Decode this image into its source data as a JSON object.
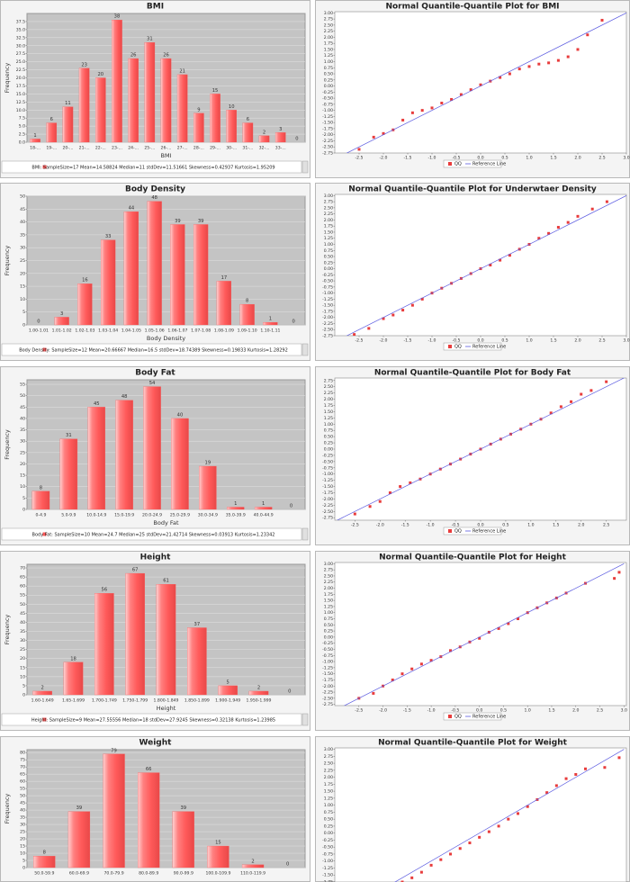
{
  "chart_data": [
    {
      "type": "bar",
      "title": "BMI",
      "x_label": "BMI",
      "y_label": "Frequency",
      "categories": [
        "18-...",
        "19-...",
        "20-...",
        "21-...",
        "22-...",
        "23-...",
        "24-...",
        "25-...",
        "26-...",
        "27-...",
        "28-...",
        "29-...",
        "30-...",
        "31-...",
        "32-...",
        "33-...",
        null
      ],
      "values": [
        1,
        6,
        11,
        23,
        20,
        38,
        26,
        31,
        26,
        21,
        9,
        15,
        10,
        6,
        2,
        3,
        0
      ],
      "color": "#ff5a5a",
      "ylim": [
        0,
        40
      ],
      "yticks": [
        {
          "value": 0,
          "label": "0.0"
        },
        2.5,
        {
          "value": 5,
          "label": "5.0"
        },
        7.5,
        {
          "value": 10,
          "label": "10.0"
        },
        12.5,
        {
          "value": 15,
          "label": "15.0"
        },
        17.5,
        {
          "value": 20,
          "label": "20.0"
        },
        22.5,
        {
          "value": 25,
          "label": "25.0"
        },
        27.5,
        {
          "value": 30,
          "label": "30.0"
        },
        32.5,
        {
          "value": 35,
          "label": "35.0"
        },
        37.5
      ],
      "grid": true,
      "summary": "BMI: SampleSize=17 Mean=14.58824 Median=11 stdDev=11.51661 Skewness=0.42937 Kurtosis=1.95209"
    },
    {
      "type": "scatter",
      "title": "Normal Quantile-Quantile Plot for BMI",
      "series": [
        {
          "name": "QQ",
          "color": "#e83c3c",
          "x": [
            -2.5,
            -2.2,
            -2.0,
            -1.8,
            -1.6,
            -1.4,
            -1.2,
            -1.0,
            -0.8,
            -0.6,
            -0.4,
            -0.2,
            0.0,
            0.2,
            0.4,
            0.6,
            0.8,
            1.0,
            1.2,
            1.4,
            1.6,
            1.8,
            2.0,
            2.2,
            2.5
          ],
          "y": [
            -2.6,
            -2.1,
            -1.95,
            -1.8,
            -1.4,
            -1.1,
            -1.0,
            -0.9,
            -0.7,
            -0.55,
            -0.35,
            -0.15,
            0.05,
            0.2,
            0.35,
            0.5,
            0.7,
            0.8,
            0.9,
            0.95,
            1.05,
            1.2,
            1.5,
            2.1,
            2.7
          ]
        },
        {
          "name": "Reference Line",
          "color": "#5a5ae0",
          "x": [
            -3,
            3
          ],
          "y": [
            -3,
            3
          ],
          "mode": "line"
        }
      ],
      "xlim": [
        -3,
        3
      ],
      "ylim": [
        -2.75,
        3.05
      ],
      "xticks": [
        -2.5,
        {
          "value": -2,
          "label": "-2.0"
        },
        -1.5,
        {
          "value": -1,
          "label": "-1.0"
        },
        -0.5,
        {
          "value": 0,
          "label": "0.0"
        },
        0.5,
        {
          "value": 1,
          "label": "1.0"
        },
        1.5,
        {
          "value": 2,
          "label": "2.0"
        },
        2.5,
        {
          "value": 3,
          "label": "3.0"
        }
      ],
      "yticks": [
        -2.75,
        {
          "value": -2.5,
          "label": "-2.50"
        },
        -2.25,
        {
          "value": -2,
          "label": "-2.00"
        },
        -1.75,
        {
          "value": -1.5,
          "label": "-1.50"
        },
        -1.25,
        {
          "value": -1,
          "label": "-1.00"
        },
        -0.75,
        {
          "value": -0.5,
          "label": "-0.50"
        },
        -0.25,
        {
          "value": 0,
          "label": "0.00"
        },
        0.25,
        {
          "value": 0.5,
          "label": "0.50"
        },
        0.75,
        {
          "value": 1,
          "label": "1.00"
        },
        1.25,
        {
          "value": 1.5,
          "label": "1.50"
        },
        1.75,
        {
          "value": 2,
          "label": "2.00"
        },
        2.25,
        {
          "value": 2.5,
          "label": "2.50"
        },
        2.75,
        {
          "value": 3,
          "label": "3.00"
        }
      ]
    },
    {
      "type": "bar",
      "title": "Body Density",
      "x_label": "Body Density",
      "y_label": "Frequency",
      "categories": [
        "1.00-1.01",
        "1.01-1.02",
        "1.02-1.03",
        "1.03-1.04",
        "1.04-1.05",
        "1.05-1.06",
        "1.06-1.07",
        "1.07-1.08",
        "1.08-1.09",
        "1.09-1.10",
        "1.10-1.11",
        null
      ],
      "values": [
        0,
        3,
        16,
        33,
        44,
        48,
        39,
        39,
        17,
        8,
        1,
        0
      ],
      "color": "#ff5a5a",
      "ylim": [
        0,
        50
      ],
      "yticks": [
        0,
        5,
        10,
        15,
        20,
        25,
        30,
        35,
        40,
        45,
        50
      ],
      "grid": true,
      "summary": "Body Density: SampleSize=12 Mean=20.66667 Median=16.5 stdDev=18.74389 Skewness=0.19833 Kurtosis=1.28292"
    },
    {
      "type": "scatter",
      "title": "Normal Quantile-Quantile Plot for Underwtaer Density",
      "series": [
        {
          "name": "QQ",
          "color": "#e83c3c",
          "x": [
            -2.6,
            -2.3,
            -2.0,
            -1.8,
            -1.6,
            -1.4,
            -1.2,
            -1.0,
            -0.8,
            -0.6,
            -0.4,
            -0.2,
            0.0,
            0.2,
            0.4,
            0.6,
            0.8,
            1.0,
            1.2,
            1.4,
            1.6,
            1.8,
            2.0,
            2.3,
            2.6
          ],
          "y": [
            -2.7,
            -2.45,
            -2.05,
            -1.9,
            -1.7,
            -1.5,
            -1.25,
            -1.0,
            -0.8,
            -0.6,
            -0.4,
            -0.2,
            0.0,
            0.15,
            0.35,
            0.55,
            0.8,
            1.0,
            1.25,
            1.45,
            1.7,
            1.9,
            2.15,
            2.45,
            2.75
          ]
        },
        {
          "name": "Reference Line",
          "color": "#5a5ae0",
          "x": [
            -3,
            3
          ],
          "y": [
            -3,
            3
          ],
          "mode": "line"
        }
      ],
      "xlim": [
        -3,
        3
      ],
      "ylim": [
        -2.75,
        3.05
      ],
      "xticks": [
        -2.5,
        {
          "value": -2,
          "label": "-2.0"
        },
        -1.5,
        {
          "value": -1,
          "label": "-1.0"
        },
        -0.5,
        {
          "value": 0,
          "label": "0.0"
        },
        0.5,
        {
          "value": 1,
          "label": "1.0"
        },
        1.5,
        {
          "value": 2,
          "label": "2.0"
        },
        2.5,
        {
          "value": 3,
          "label": "3.0"
        }
      ],
      "yticks": [
        -2.75,
        {
          "value": -2.5,
          "label": "-2.50"
        },
        -2.25,
        {
          "value": -2,
          "label": "-2.00"
        },
        -1.75,
        {
          "value": -1.5,
          "label": "-1.50"
        },
        -1.25,
        {
          "value": -1,
          "label": "-1.00"
        },
        -0.75,
        {
          "value": -0.5,
          "label": "-0.50"
        },
        -0.25,
        {
          "value": 0,
          "label": "0.00"
        },
        0.25,
        {
          "value": 0.5,
          "label": "0.50"
        },
        0.75,
        {
          "value": 1,
          "label": "1.00"
        },
        1.25,
        {
          "value": 1.5,
          "label": "1.50"
        },
        1.75,
        {
          "value": 2,
          "label": "2.00"
        },
        2.25,
        {
          "value": 2.5,
          "label": "2.50"
        },
        2.75,
        {
          "value": 3,
          "label": "3.00"
        }
      ]
    },
    {
      "type": "bar",
      "title": "Body Fat",
      "x_label": "Body Fat",
      "y_label": "Frequency",
      "categories": [
        "0-4.9",
        "5.0-9.9",
        "10.0-14.9",
        "15.0-19.9",
        "20.0-24.9",
        "25.0-29.9",
        "30.0-34.9",
        "35.0-39.9",
        "40.0-44.9",
        null
      ],
      "values": [
        8,
        31,
        45,
        48,
        54,
        40,
        19,
        1,
        1,
        0
      ],
      "color": "#ff5a5a",
      "ylim": [
        0,
        57
      ],
      "yticks": [
        0,
        5,
        10,
        15,
        20,
        25,
        30,
        35,
        40,
        45,
        50,
        55
      ],
      "grid": true,
      "summary": "Body Fat: SampleSize=10 Mean=24.7 Median=25 stdDev=21.42714 Skewness=0.03913 Kurtosis=1.23342"
    },
    {
      "type": "scatter",
      "title": "Normal Quantile-Quantile Plot for Body Fat",
      "series": [
        {
          "name": "QQ",
          "color": "#e83c3c",
          "x": [
            -2.5,
            -2.2,
            -2.0,
            -1.8,
            -1.6,
            -1.4,
            -1.2,
            -1.0,
            -0.8,
            -0.6,
            -0.4,
            -0.2,
            0.0,
            0.2,
            0.4,
            0.6,
            0.8,
            1.0,
            1.2,
            1.4,
            1.6,
            1.8,
            2.0,
            2.2,
            2.5
          ],
          "y": [
            -2.6,
            -2.3,
            -2.1,
            -1.75,
            -1.5,
            -1.35,
            -1.2,
            -1.0,
            -0.8,
            -0.6,
            -0.4,
            -0.2,
            0.0,
            0.2,
            0.4,
            0.6,
            0.8,
            1.0,
            1.2,
            1.45,
            1.7,
            1.9,
            2.2,
            2.35,
            2.7
          ]
        },
        {
          "name": "Reference Line",
          "color": "#5a5ae0",
          "x": [
            -2.9,
            2.9
          ],
          "y": [
            -2.9,
            2.9
          ],
          "mode": "line"
        }
      ],
      "xlim": [
        -2.9,
        2.9
      ],
      "ylim": [
        -2.85,
        2.85
      ],
      "xticks": [
        -2.5,
        {
          "value": -2,
          "label": "-2.0"
        },
        -1.5,
        {
          "value": -1,
          "label": "-1.0"
        },
        -0.5,
        {
          "value": 0,
          "label": "0.0"
        },
        0.5,
        {
          "value": 1,
          "label": "1.0"
        },
        1.5,
        {
          "value": 2,
          "label": "2.0"
        },
        2.5
      ],
      "yticks": [
        -2.75,
        {
          "value": -2.5,
          "label": "-2.50"
        },
        -2.25,
        {
          "value": -2,
          "label": "-2.00"
        },
        -1.75,
        {
          "value": -1.5,
          "label": "-1.50"
        },
        -1.25,
        {
          "value": -1,
          "label": "-1.00"
        },
        -0.75,
        {
          "value": -0.5,
          "label": "-0.50"
        },
        -0.25,
        {
          "value": 0,
          "label": "0.00"
        },
        0.25,
        {
          "value": 0.5,
          "label": "0.50"
        },
        0.75,
        {
          "value": 1,
          "label": "1.00"
        },
        1.25,
        {
          "value": 1.5,
          "label": "1.50"
        },
        1.75,
        {
          "value": 2,
          "label": "2.00"
        },
        2.25,
        {
          "value": 2.5,
          "label": "2.50"
        },
        2.75
      ]
    },
    {
      "type": "bar",
      "title": "Height",
      "x_label": "Height",
      "y_label": "Frequency",
      "categories": [
        "1.60-1.649",
        "1.65-1.699",
        "1.700-1.749",
        "1.750-1.799",
        "1.800-1.849",
        "1.850-1.899",
        "1.900-1.949",
        "1.950-1.999",
        null
      ],
      "values": [
        2,
        18,
        56,
        67,
        61,
        37,
        5,
        2,
        0
      ],
      "color": "#ff5a5a",
      "ylim": [
        0,
        72
      ],
      "yticks": [
        0,
        5,
        10,
        15,
        20,
        25,
        30,
        35,
        40,
        45,
        50,
        55,
        60,
        65,
        70
      ],
      "grid": true,
      "summary": "Height: SampleSize=9 Mean=27.55556 Median=18 stdDev=27.9245 Skewness=0.32138 Kurtosis=1.23985"
    },
    {
      "type": "scatter",
      "title": "Normal Quantile-Quantile Plot for Height",
      "series": [
        {
          "name": "QQ",
          "color": "#e83c3c",
          "x": [
            -2.5,
            -2.2,
            -2.0,
            -1.8,
            -1.6,
            -1.4,
            -1.2,
            -1.0,
            -0.8,
            -0.6,
            -0.4,
            -0.2,
            0.0,
            0.2,
            0.4,
            0.6,
            0.8,
            1.0,
            1.2,
            1.4,
            1.6,
            1.8,
            2.2,
            2.8,
            2.9
          ],
          "y": [
            -2.5,
            -2.3,
            -2.0,
            -1.75,
            -1.5,
            -1.3,
            -1.1,
            -0.95,
            -0.8,
            -0.55,
            -0.4,
            -0.2,
            -0.05,
            0.2,
            0.35,
            0.55,
            0.75,
            1.0,
            1.2,
            1.4,
            1.6,
            1.8,
            2.2,
            2.4,
            2.65
          ]
        },
        {
          "name": "Reference Line",
          "color": "#5a5ae0",
          "x": [
            -3,
            3
          ],
          "y": [
            -3,
            3
          ],
          "mode": "line"
        }
      ],
      "xlim": [
        -3,
        3.05
      ],
      "ylim": [
        -2.8,
        3.05
      ],
      "xticks": [
        -2.5,
        {
          "value": -2,
          "label": "-2.0"
        },
        -1.5,
        {
          "value": -1,
          "label": "-1.0"
        },
        -0.5,
        {
          "value": 0,
          "label": "0.0"
        },
        0.5,
        {
          "value": 1,
          "label": "1.0"
        },
        1.5,
        {
          "value": 2,
          "label": "2.0"
        },
        2.5,
        {
          "value": 3,
          "label": "3.0"
        }
      ],
      "yticks": [
        -2.75,
        {
          "value": -2.5,
          "label": "-2.50"
        },
        -2.25,
        {
          "value": -2,
          "label": "-2.00"
        },
        -1.75,
        {
          "value": -1.5,
          "label": "-1.50"
        },
        -1.25,
        {
          "value": -1,
          "label": "-1.00"
        },
        -0.75,
        {
          "value": -0.5,
          "label": "-0.50"
        },
        -0.25,
        {
          "value": 0,
          "label": "0.00"
        },
        0.25,
        {
          "value": 0.5,
          "label": "0.50"
        },
        0.75,
        {
          "value": 1,
          "label": "1.00"
        },
        1.25,
        {
          "value": 1.5,
          "label": "1.50"
        },
        1.75,
        {
          "value": 2,
          "label": "2.00"
        },
        2.25,
        {
          "value": 2.5,
          "label": "2.50"
        },
        2.75,
        {
          "value": 3,
          "label": "3.00"
        }
      ]
    },
    {
      "type": "bar",
      "title": "Weight",
      "y_label": "Frequency",
      "categories": [
        "50.0-59.9",
        "60.0-69.9",
        "70.0-79.9",
        "80.0-89.9",
        "90.0-99.9",
        "100.0-109.9",
        "110.0-119.9",
        null
      ],
      "values": [
        8,
        39,
        79,
        66,
        39,
        15,
        2,
        0
      ],
      "color": "#ff5a5a",
      "ylim": [
        0,
        82
      ],
      "yticks": [
        0,
        5,
        10,
        15,
        20,
        25,
        30,
        35,
        40,
        45,
        50,
        55,
        60,
        65,
        70,
        75,
        80
      ],
      "grid": true
    },
    {
      "type": "scatter",
      "title": "Normal Quantile-Quantile Plot for Weight",
      "series": [
        {
          "color": "#e83c3c",
          "x": [
            -1.6,
            -1.4,
            -1.2,
            -1.0,
            -0.8,
            -0.6,
            -0.4,
            -0.2,
            0.0,
            0.2,
            0.4,
            0.6,
            0.8,
            1.0,
            1.2,
            1.4,
            1.6,
            1.8,
            2.0,
            2.2,
            2.6,
            2.9
          ],
          "y": [
            -1.75,
            -1.6,
            -1.4,
            -1.15,
            -0.95,
            -0.75,
            -0.55,
            -0.35,
            -0.15,
            0.05,
            0.25,
            0.5,
            0.7,
            0.95,
            1.2,
            1.45,
            1.7,
            1.95,
            2.1,
            2.3,
            2.35,
            2.7
          ]
        },
        {
          "color": "#5a5ae0",
          "x": [
            -1.9,
            3
          ],
          "y": [
            -1.9,
            3
          ],
          "mode": "line"
        }
      ],
      "xlim": [
        -3,
        3.05
      ],
      "ylim": [
        -1.75,
        3.05
      ],
      "yticks": [
        -1.75,
        {
          "value": -1.5,
          "label": "-1.50"
        },
        -1.25,
        {
          "value": -1,
          "label": "-1.00"
        },
        -0.75,
        {
          "value": -0.5,
          "label": "-0.50"
        },
        -0.25,
        {
          "value": 0,
          "label": "0.00"
        },
        0.25,
        {
          "value": 0.5,
          "label": "0.50"
        },
        0.75,
        {
          "value": 1,
          "label": "1.00"
        },
        1.25,
        {
          "value": 1.5,
          "label": "1.50"
        },
        1.75,
        {
          "value": 2,
          "label": "2.00"
        },
        2.25,
        {
          "value": 2.5,
          "label": "2.50"
        },
        2.75,
        {
          "value": 3,
          "label": "3.00"
        }
      ]
    }
  ]
}
